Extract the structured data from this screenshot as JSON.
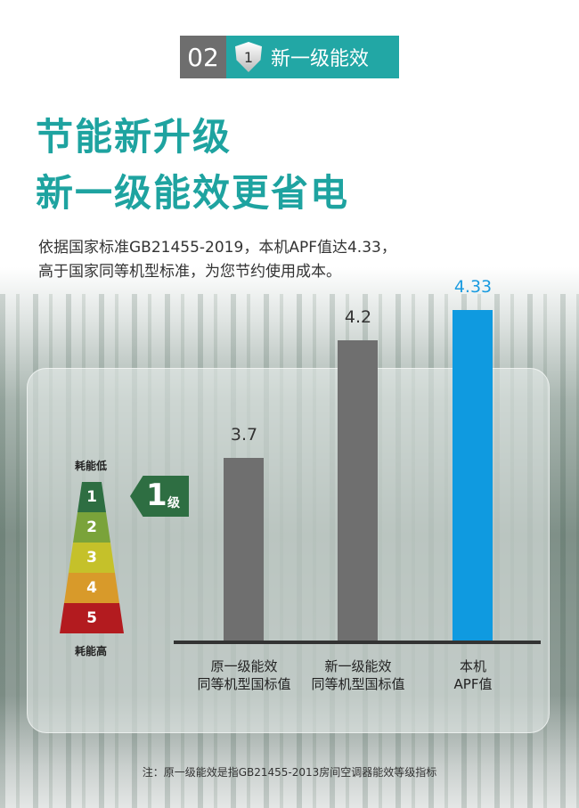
{
  "badge": {
    "number": "02",
    "icon": "shield-1-icon",
    "shield_digit": "1",
    "label": "新一级能效"
  },
  "headline": [
    "节能新升级",
    "新一级能效更省电"
  ],
  "description": [
    "依据国家标准GB21455-2019，本机APF值达4.33，",
    "高于国家同等机型标准，为您节约使用成本。"
  ],
  "energy_scale": {
    "top_label": "耗能低",
    "bottom_label": "耗能高",
    "levels": [
      "1",
      "2",
      "3",
      "4",
      "5"
    ],
    "level_colors": [
      "#2e6e42",
      "#7aa33a",
      "#c5c12a",
      "#d89a2a",
      "#b31b1f"
    ],
    "current": {
      "digit": "1",
      "suffix": "级"
    }
  },
  "chart_data": {
    "type": "bar",
    "categories": [
      [
        "原一级能效",
        "同等机型国标值"
      ],
      [
        "新一级能效",
        "同等机型国标值"
      ],
      [
        "本机",
        "APF值"
      ]
    ],
    "values": [
      3.7,
      4.2,
      4.33
    ],
    "colors": [
      "#6f6f6f",
      "#6f6f6f",
      "#0f9ae0"
    ],
    "value_label_colors": [
      "#333333",
      "#333333",
      "#1a9be0"
    ],
    "ylim": [
      2.92,
      4.4
    ],
    "grid": false
  },
  "note": "注：原一级能效是指GB21455-2013房间空调器能效等级指标"
}
